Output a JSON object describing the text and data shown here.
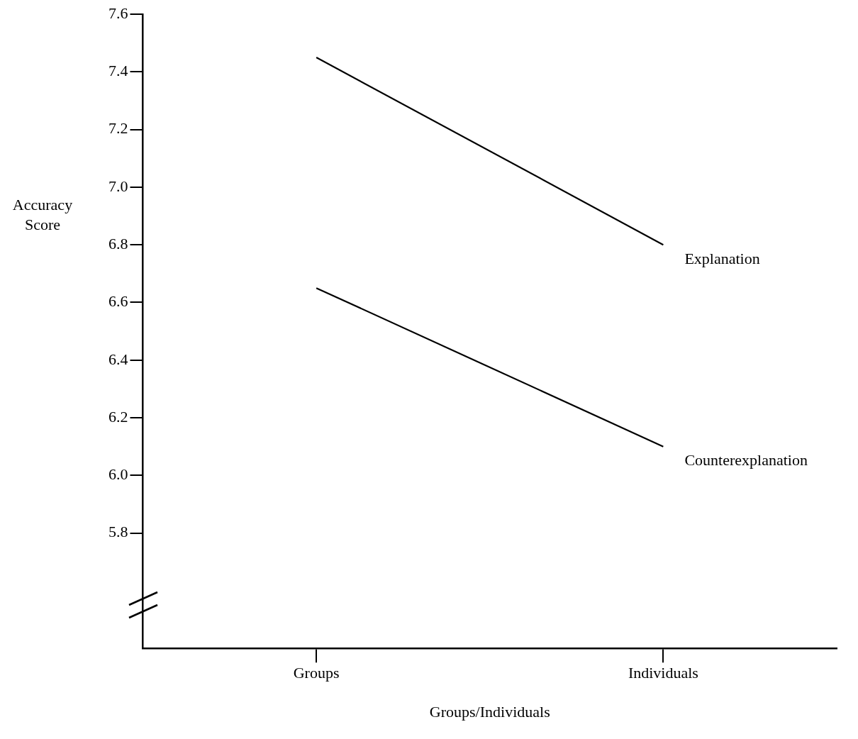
{
  "chart_data": {
    "type": "line",
    "xlabel": "Groups/Individuals",
    "ylabel": "Accuracy Score",
    "categories": [
      "Groups",
      "Individuals"
    ],
    "series": [
      {
        "name": "Explanation",
        "color": "#000000",
        "values": [
          7.45,
          6.8
        ]
      },
      {
        "name": "Counterexplanation",
        "color": "#000000",
        "values": [
          6.65,
          6.1
        ]
      }
    ],
    "ylim": [
      5.4,
      7.6
    ],
    "yticks": [
      5.8,
      {
        "value": 6,
        "label": "6.0"
      },
      6.2,
      6.4,
      6.6,
      6.8,
      {
        "value": 7,
        "label": "7.0"
      },
      7.2,
      7.4,
      7.6
    ],
    "grid": false,
    "legend": false,
    "marker": "none",
    "line_style": "solid"
  }
}
